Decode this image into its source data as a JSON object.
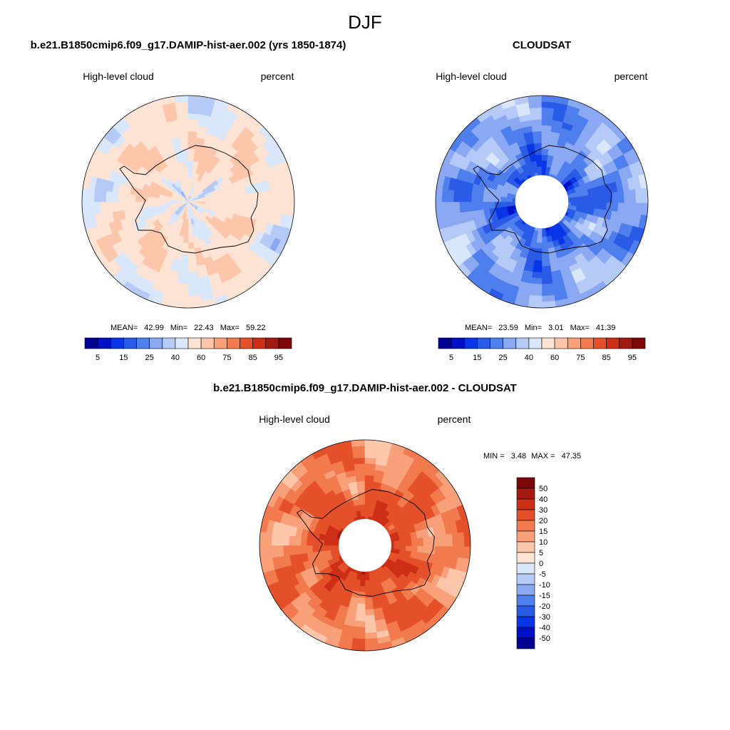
{
  "figure": {
    "title": "DJF"
  },
  "colors": {
    "abs_palette": [
      "#000092",
      "#0010c6",
      "#0a35e6",
      "#2a5ae6",
      "#4f7fec",
      "#8aa9f2",
      "#b5caf6",
      "#d8e7fa",
      "#fde3d4",
      "#fcc6ab",
      "#f7a079",
      "#f17a4f",
      "#e4502a",
      "#cc2e16",
      "#a21a10",
      "#7a0806"
    ],
    "diff_palette": [
      "#000092",
      "#0010c6",
      "#0a35e6",
      "#2a5ae6",
      "#4f7fec",
      "#8aa9f2",
      "#b5caf6",
      "#d8e7fa",
      "#fde3d4",
      "#fcc6ab",
      "#f7a079",
      "#f17a4f",
      "#e4502a",
      "#cc2e16",
      "#a21a10",
      "#7a0806"
    ]
  },
  "chart_data": [
    {
      "type": "heatmap",
      "projection": "south-polar-stereographic",
      "title": "b.e21.B1850cmip6.f09_g17.DAMIP-hist-aer.002 (yrs 1850-1874)",
      "left_label": "High-level cloud",
      "right_label": "percent",
      "stats": {
        "mean_label": "MEAN=",
        "mean": "42.99",
        "min_label": "Min=",
        "min": "22.43",
        "max_label": "Max=",
        "max": "59.22"
      },
      "colorbar_levels": [
        "5",
        "15",
        "25",
        "40",
        "60",
        "75",
        "85",
        "95"
      ],
      "colorbar_orientation": "horizontal",
      "levels": [
        5,
        10,
        15,
        20,
        25,
        30,
        35,
        40,
        50,
        60,
        65,
        70,
        75,
        80,
        85,
        90,
        95
      ],
      "field": {
        "base": 44,
        "mode": "model"
      }
    },
    {
      "type": "heatmap",
      "projection": "south-polar-stereographic",
      "title": "CLOUDSAT",
      "left_label": "High-level cloud",
      "right_label": "percent",
      "stats": {
        "mean_label": "MEAN=",
        "mean": "23.59",
        "min_label": "Min=",
        "min": "3.01",
        "max_label": "Max=",
        "max": "41.39"
      },
      "colorbar_levels": [
        "5",
        "15",
        "25",
        "40",
        "60",
        "75",
        "85",
        "95"
      ],
      "colorbar_orientation": "horizontal",
      "levels": [
        5,
        10,
        15,
        20,
        25,
        30,
        35,
        40,
        50,
        60,
        65,
        70,
        75,
        80,
        85,
        90,
        95
      ],
      "field": {
        "base": 25,
        "mode": "obs",
        "missing_pole": true
      }
    },
    {
      "type": "heatmap",
      "projection": "south-polar-stereographic",
      "title": "b.e21.B1850cmip6.f09_g17.DAMIP-hist-aer.002 - CLOUDSAT",
      "left_label": "High-level cloud",
      "right_label": "percent",
      "stats": {
        "min_label": "MIN =",
        "min": "3.48",
        "max_label": "MAX =",
        "max": "47.35"
      },
      "colorbar_levels": [
        "50",
        "40",
        "30",
        "20",
        "15",
        "10",
        "5",
        "0",
        "-5",
        "-10",
        "-15",
        "-20",
        "-30",
        "-40",
        "-50"
      ],
      "colorbar_orientation": "vertical",
      "levels": [
        -50,
        -40,
        -30,
        -20,
        -15,
        -10,
        -5,
        0,
        5,
        10,
        15,
        20,
        30,
        40,
        50
      ],
      "field": {
        "base": 19,
        "mode": "diff",
        "missing_pole": true
      }
    }
  ]
}
